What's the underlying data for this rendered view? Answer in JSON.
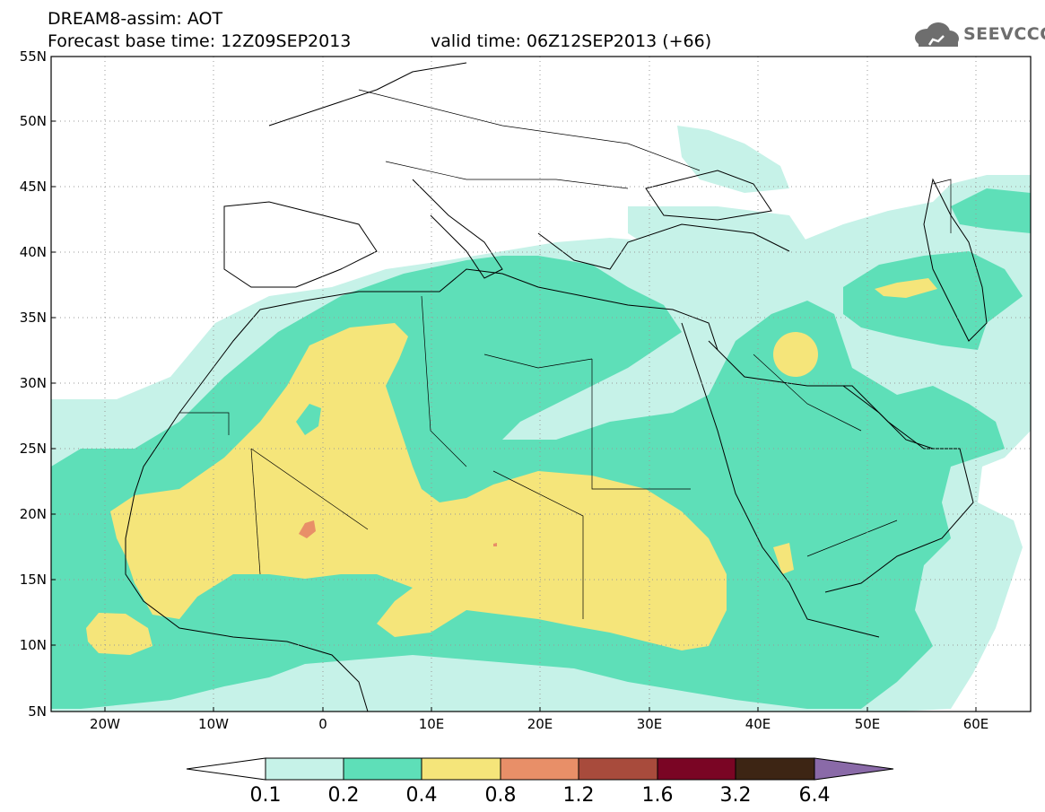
{
  "header": {
    "line1": "DREAM8-assim: AOT",
    "line2": "Forecast base time: 12Z09SEP2013",
    "valid": "valid time: 06Z12SEP2013 (+66)",
    "logo_text": "SEEVCCC"
  },
  "map": {
    "lat_labels": [
      "55N",
      "50N",
      "45N",
      "40N",
      "35N",
      "30N",
      "25N",
      "20N",
      "15N",
      "10N",
      "5N"
    ],
    "lon_labels": [
      "20W",
      "10W",
      "0",
      "10E",
      "20E",
      "30E",
      "40E",
      "50E",
      "60E"
    ]
  },
  "legend": {
    "labels": [
      "0.1",
      "0.2",
      "0.4",
      "0.8",
      "1.2",
      "1.6",
      "3.2",
      "6.4"
    ],
    "colors": [
      "#ffffff",
      "#c6f2e8",
      "#5edfb8",
      "#f5e57a",
      "#e88f68",
      "#a84b3c",
      "#7a0524",
      "#3d2514",
      "#8a6aa8"
    ]
  }
}
